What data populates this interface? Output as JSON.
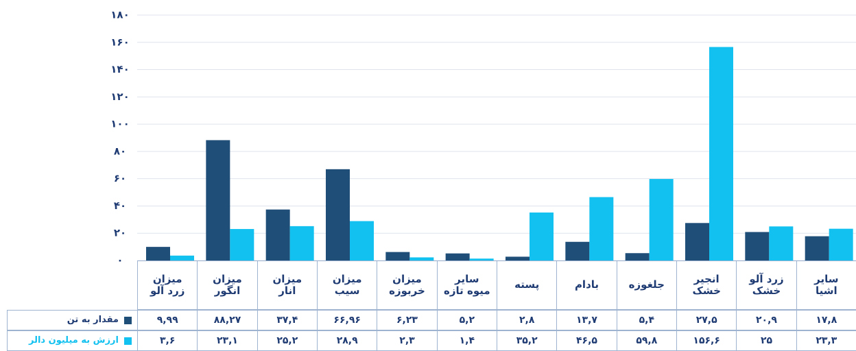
{
  "chart_data": {
    "type": "bar",
    "categories": [
      "میزان\nزرد آلو",
      "میزان\nانگور",
      "میزان\nانار",
      "میزان\nسیب",
      "میزان\nخربوزه",
      "سایر\nمیوه تازه",
      "پسته",
      "بادام",
      "جلغوزه",
      "انجیر\nخشک",
      "زرد آلو\nخشک",
      "سایر\nاشیا"
    ],
    "series": [
      {
        "name": "مقدار به تن",
        "color": "#1f4e79",
        "values": [
          9.99,
          88.27,
          37.4,
          66.96,
          6.23,
          5.2,
          2.8,
          13.7,
          5.4,
          27.5,
          20.9,
          17.8
        ],
        "value_labels": [
          "۹,۹۹",
          "۸۸,۲۷",
          "۳۷,۴",
          "۶۶,۹۶",
          "۶,۲۳",
          "۵,۲",
          "۲,۸",
          "۱۳,۷",
          "۵,۴",
          "۲۷,۵",
          "۲۰,۹",
          "۱۷,۸"
        ]
      },
      {
        "name": "ارزش به میلیون دالر",
        "color": "#13c1f0",
        "values": [
          3.6,
          23.1,
          25.2,
          28.9,
          2.3,
          1.4,
          35.2,
          46.5,
          59.8,
          156.6,
          25,
          23.3
        ],
        "value_labels": [
          "۳,۶",
          "۲۳,۱",
          "۲۵,۲",
          "۲۸,۹",
          "۲,۳",
          "۱,۴",
          "۳۵,۲",
          "۴۶,۵",
          "۵۹,۸",
          "۱۵۶,۶",
          "۲۵",
          "۲۳,۳"
        ]
      }
    ],
    "ylim": [
      0,
      180
    ],
    "yticks": [
      {
        "value": 0,
        "label": "۰"
      },
      {
        "value": 20,
        "label": "۲۰"
      },
      {
        "value": 40,
        "label": "۴۰"
      },
      {
        "value": 60,
        "label": "۶۰"
      },
      {
        "value": 80,
        "label": "۸۰"
      },
      {
        "value": 100,
        "label": "۱۰۰"
      },
      {
        "value": 120,
        "label": "۱۲۰"
      },
      {
        "value": 140,
        "label": "۱۴۰"
      },
      {
        "value": 160,
        "label": "۱۶۰"
      },
      {
        "value": 180,
        "label": "۱۸۰"
      }
    ],
    "grid": true
  }
}
